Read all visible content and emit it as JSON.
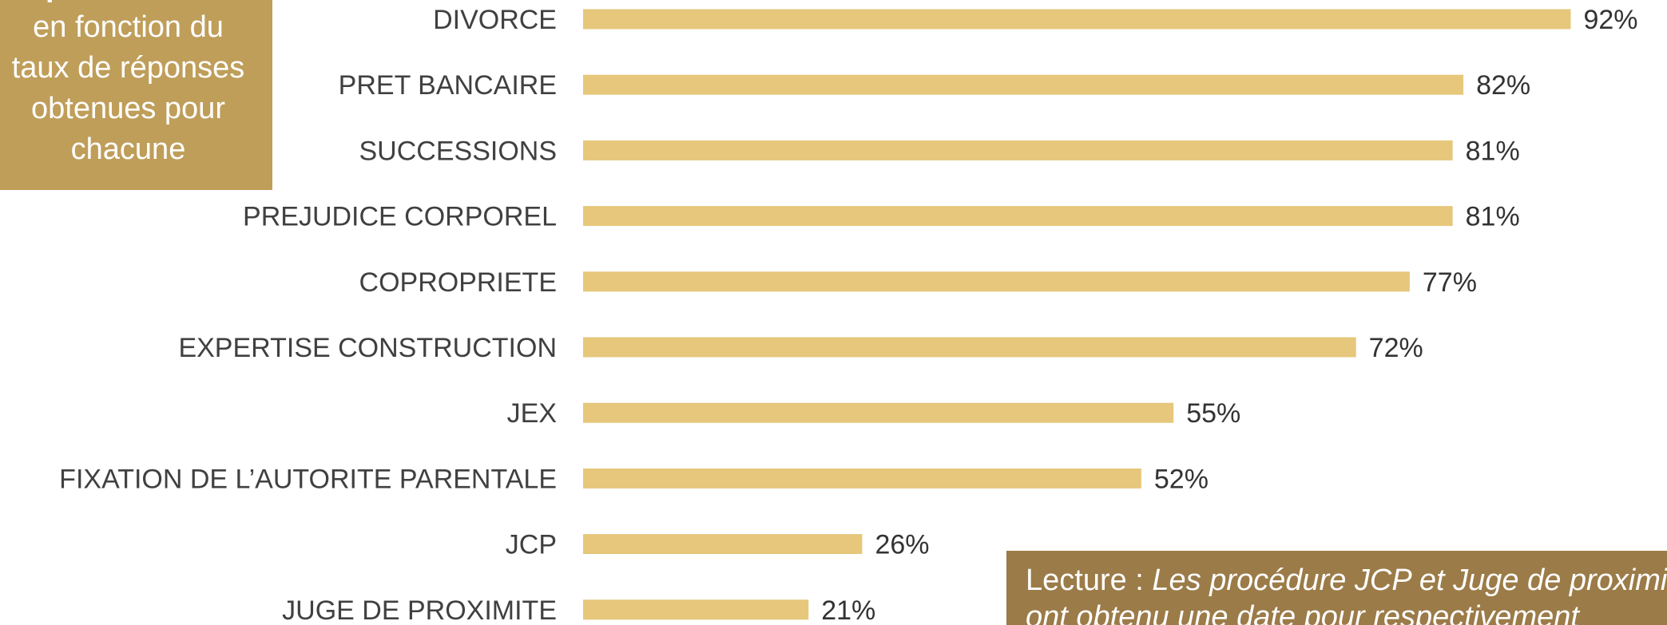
{
  "side_box": {
    "line1": "procédures",
    "line2": "en fonction du",
    "line3": "taux de réponses",
    "line4": "obtenues pour",
    "line5": "chacune"
  },
  "note": {
    "lead": "Lecture : ",
    "text_line1": "Les procédure JCP et Juge de proximité",
    "text_line2": "ont obtenu une date pour respectivement"
  },
  "colors": {
    "bar": "#e6c77b",
    "side_box": "#bf9e5a",
    "note_box": "#9b7b48"
  },
  "chart_data": {
    "type": "bar",
    "orientation": "horizontal",
    "categories": [
      "DIVORCE",
      "PRET BANCAIRE",
      "SUCCESSIONS",
      "PREJUDICE CORPOREL",
      "COPROPRIETE",
      "EXPERTISE CONSTRUCTION",
      "JEX",
      "FIXATION DE L’AUTORITE PARENTALE",
      "JCP",
      "JUGE DE PROXIMITE"
    ],
    "values": [
      92,
      82,
      81,
      81,
      77,
      72,
      55,
      52,
      26,
      21
    ],
    "value_labels": [
      "92%",
      "82%",
      "81%",
      "81%",
      "77%",
      "72%",
      "55%",
      "52%",
      "26%",
      "21%"
    ],
    "unit": "%",
    "xlim": [
      0,
      100
    ],
    "grid": false,
    "legend": "none"
  }
}
